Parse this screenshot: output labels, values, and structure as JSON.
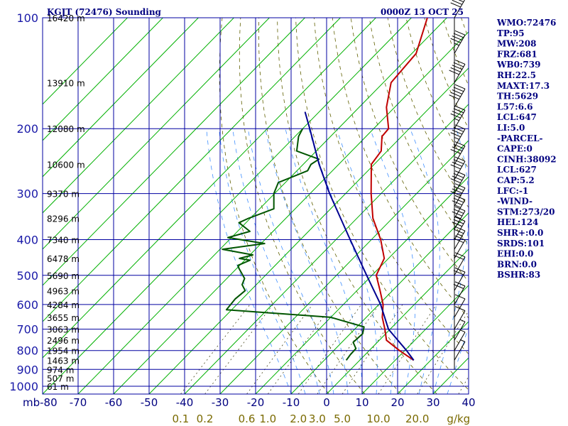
{
  "header": {
    "station": "KGJT (72476) Sounding",
    "datetime": "0000Z 13 OCT 25"
  },
  "chart_data": {
    "type": "line",
    "ylabel": "mb",
    "y_scale": "log",
    "pressure_axis_levels": [
      100,
      200,
      300,
      400,
      500,
      600,
      700,
      800,
      900,
      1000
    ],
    "pressure_tick_labels": [
      "100",
      "200",
      "300",
      "400",
      "500",
      "600",
      "700",
      "800",
      "900",
      "1000"
    ],
    "x_tick_values": [
      -80,
      -70,
      -60,
      -50,
      -40,
      -30,
      -20,
      -10,
      0,
      10,
      20,
      30,
      40
    ],
    "x_tick_labels": [
      "mb-80",
      "-70",
      "-60",
      "-50",
      "-40",
      "-30",
      "-20",
      "-10",
      "0",
      "10",
      "20",
      "30",
      "40"
    ],
    "mixing_ratio_labels": [
      "0.1",
      "0.2",
      "0.6",
      "1.0",
      "2.0",
      "3.0",
      "5.0",
      "10.0",
      "20.0",
      "g/kg"
    ],
    "height_labels": [
      {
        "p": 100,
        "label": "16420 m"
      },
      {
        "p": 150,
        "label": "13910 m"
      },
      {
        "p": 200,
        "label": "12080 m"
      },
      {
        "p": 250,
        "label": "10600 m"
      },
      {
        "p": 300,
        "label": "9370 m"
      },
      {
        "p": 350,
        "label": "8296 m"
      },
      {
        "p": 400,
        "label": "7340 m"
      },
      {
        "p": 450,
        "label": "6478 m"
      },
      {
        "p": 500,
        "label": "5690 m"
      },
      {
        "p": 550,
        "label": "4963 m"
      },
      {
        "p": 600,
        "label": "4284 m"
      },
      {
        "p": 650,
        "label": "3655 m"
      },
      {
        "p": 700,
        "label": "3063 m"
      },
      {
        "p": 750,
        "label": "2496 m"
      },
      {
        "p": 800,
        "label": "1954 m"
      },
      {
        "p": 850,
        "label": "1463 m"
      },
      {
        "p": 900,
        "label": "974 m"
      },
      {
        "p": 950,
        "label": "507 m"
      },
      {
        "p": 1000,
        "label": "61 m"
      }
    ],
    "series": [
      {
        "color": "#c00000",
        "points": [
          [
            850,
            15.2
          ],
          [
            800,
            8.5
          ],
          [
            750,
            2.0
          ],
          [
            700,
            -1.5
          ],
          [
            650,
            -5.5
          ],
          [
            600,
            -8.8
          ],
          [
            550,
            -13.5
          ],
          [
            500,
            -18.8
          ],
          [
            450,
            -21.2
          ],
          [
            400,
            -27.4
          ],
          [
            350,
            -35.5
          ],
          [
            300,
            -42.8
          ],
          [
            250,
            -50.8
          ],
          [
            230,
            -51.7
          ],
          [
            210,
            -55.5
          ],
          [
            200,
            -55.8
          ],
          [
            175,
            -62.3
          ],
          [
            150,
            -67.8
          ],
          [
            125,
            -68.8
          ],
          [
            100,
            -75.5
          ]
        ]
      },
      {
        "color": "#005500",
        "points": [
          [
            850,
            -3.8
          ],
          [
            820,
            -4.2
          ],
          [
            790,
            -4.3
          ],
          [
            760,
            -6.8
          ],
          [
            720,
            -6.5
          ],
          [
            690,
            -8.0
          ],
          [
            650,
            -20.0
          ],
          [
            620,
            -51.5
          ],
          [
            580,
            -52.0
          ],
          [
            550,
            -51.5
          ],
          [
            530,
            -54.0
          ],
          [
            510,
            -55.0
          ],
          [
            480,
            -59.2
          ],
          [
            470,
            -60.5
          ],
          [
            455,
            -58.5
          ],
          [
            450,
            -62.0
          ],
          [
            440,
            -59.2
          ],
          [
            425,
            -69.3
          ],
          [
            410,
            -59.0
          ],
          [
            395,
            -71.0
          ],
          [
            380,
            -66.5
          ],
          [
            360,
            -72.0
          ],
          [
            350,
            -70.5
          ],
          [
            330,
            -66.0
          ],
          [
            300,
            -70.2
          ],
          [
            280,
            -72.0
          ],
          [
            260,
            -67.0
          ],
          [
            250,
            -67.8
          ],
          [
            242,
            -67.0
          ],
          [
            230,
            -75.5
          ],
          [
            210,
            -79.0
          ],
          [
            200,
            -80.0
          ]
        ]
      },
      {
        "color": "#000090",
        "points": [
          [
            850,
            15.2
          ],
          [
            800,
            10.5
          ],
          [
            700,
            -0.5
          ],
          [
            600,
            -9.5
          ],
          [
            500,
            -21.5
          ],
          [
            400,
            -36.0
          ],
          [
            300,
            -54.5
          ],
          [
            250,
            -65.5
          ],
          [
            200,
            -78.0
          ],
          [
            180,
            -84.0
          ]
        ]
      }
    ],
    "wind_barbs": [
      {
        "p": 100,
        "speed_kt": 40
      },
      {
        "p": 125,
        "speed_kt": 45
      },
      {
        "p": 150,
        "speed_kt": 50
      },
      {
        "p": 175,
        "speed_kt": 50
      },
      {
        "p": 200,
        "speed_kt": 45
      },
      {
        "p": 225,
        "speed_kt": 45
      },
      {
        "p": 250,
        "speed_kt": 40
      },
      {
        "p": 275,
        "speed_kt": 40
      },
      {
        "p": 300,
        "speed_kt": 40
      },
      {
        "p": 325,
        "speed_kt": 40
      },
      {
        "p": 350,
        "speed_kt": 35
      },
      {
        "p": 375,
        "speed_kt": 35
      },
      {
        "p": 400,
        "speed_kt": 30
      },
      {
        "p": 425,
        "speed_kt": 25
      },
      {
        "p": 450,
        "speed_kt": 20
      },
      {
        "p": 500,
        "speed_kt": 20
      },
      {
        "p": 550,
        "speed_kt": 20
      },
      {
        "p": 600,
        "speed_kt": 20
      },
      {
        "p": 650,
        "speed_kt": 10
      },
      {
        "p": 700,
        "speed_kt": 10
      },
      {
        "p": 750,
        "speed_kt": 5
      },
      {
        "p": 800,
        "speed_kt": 5
      },
      {
        "p": 850,
        "speed_kt": 5
      }
    ],
    "grid": true,
    "legend": "none"
  },
  "indices": [
    "WMO:72476",
    "TP:95",
    "MW:208",
    "FRZ:681",
    "WB0:739",
    "RH:22.5",
    "MAXT:17.3",
    "TH:5629",
    "L57:6.6",
    "LCL:647",
    "LI:5.0",
    "-PARCEL-",
    "CAPE:0",
    "CINH:38092",
    "LCL:627",
    "CAP:5.2",
    "LFC:-1",
    "-WIND-",
    "STM:273/20",
    "HEL:124",
    "SHR+:0.0",
    "SRDS:101",
    "EHI:0.0",
    "BRN:0.0",
    "BSHR:83"
  ],
  "colors": {
    "grid": "#0000a0",
    "isotherm": "#00b000",
    "dry_adiabat": "#606000",
    "moist_adiabat": "#4090ff",
    "temperature": "#c00000",
    "dewpoint": "#005500",
    "parcel": "#000090",
    "barbs": "#000000"
  }
}
